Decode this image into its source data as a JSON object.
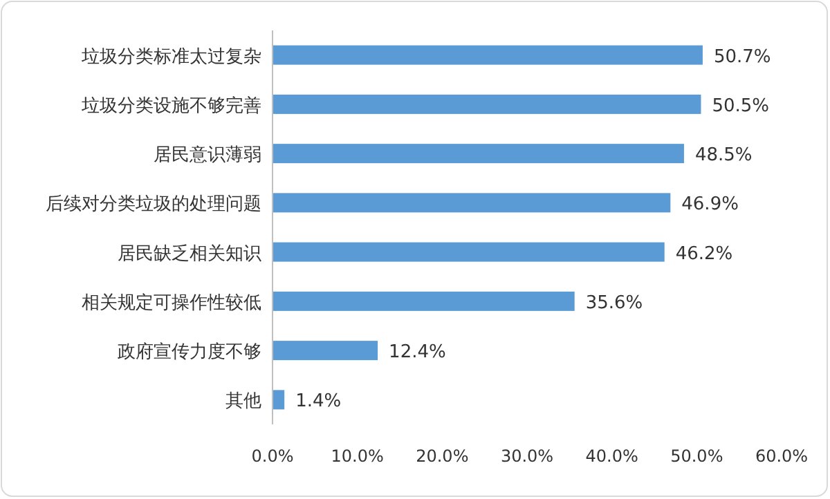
{
  "chart_data": {
    "type": "bar",
    "orientation": "horizontal",
    "categories": [
      "垃圾分类标准太过复杂",
      "垃圾分类设施不够完善",
      "居民意识薄弱",
      "后续对分类垃圾的处理问题",
      "居民缺乏相关知识",
      "相关规定可操作性较低",
      "政府宣传力度不够",
      "其他"
    ],
    "values": [
      50.7,
      50.5,
      48.5,
      46.9,
      46.2,
      35.6,
      12.4,
      1.4
    ],
    "value_labels": [
      "50.7%",
      "50.5%",
      "48.5%",
      "46.9%",
      "46.2%",
      "35.6%",
      "12.4%",
      "1.4%"
    ],
    "color": "#5b9bd5",
    "xlim": [
      0,
      60
    ],
    "xticks": [
      {
        "value": 0,
        "label": "0.0%"
      },
      {
        "value": 10,
        "label": "10.0%"
      },
      {
        "value": 20,
        "label": "20.0%"
      },
      {
        "value": 30,
        "label": "30.0%"
      },
      {
        "value": 40,
        "label": "40.0%"
      },
      {
        "value": 50,
        "label": "50.0%"
      },
      {
        "value": 60,
        "label": "60.0%"
      }
    ]
  }
}
